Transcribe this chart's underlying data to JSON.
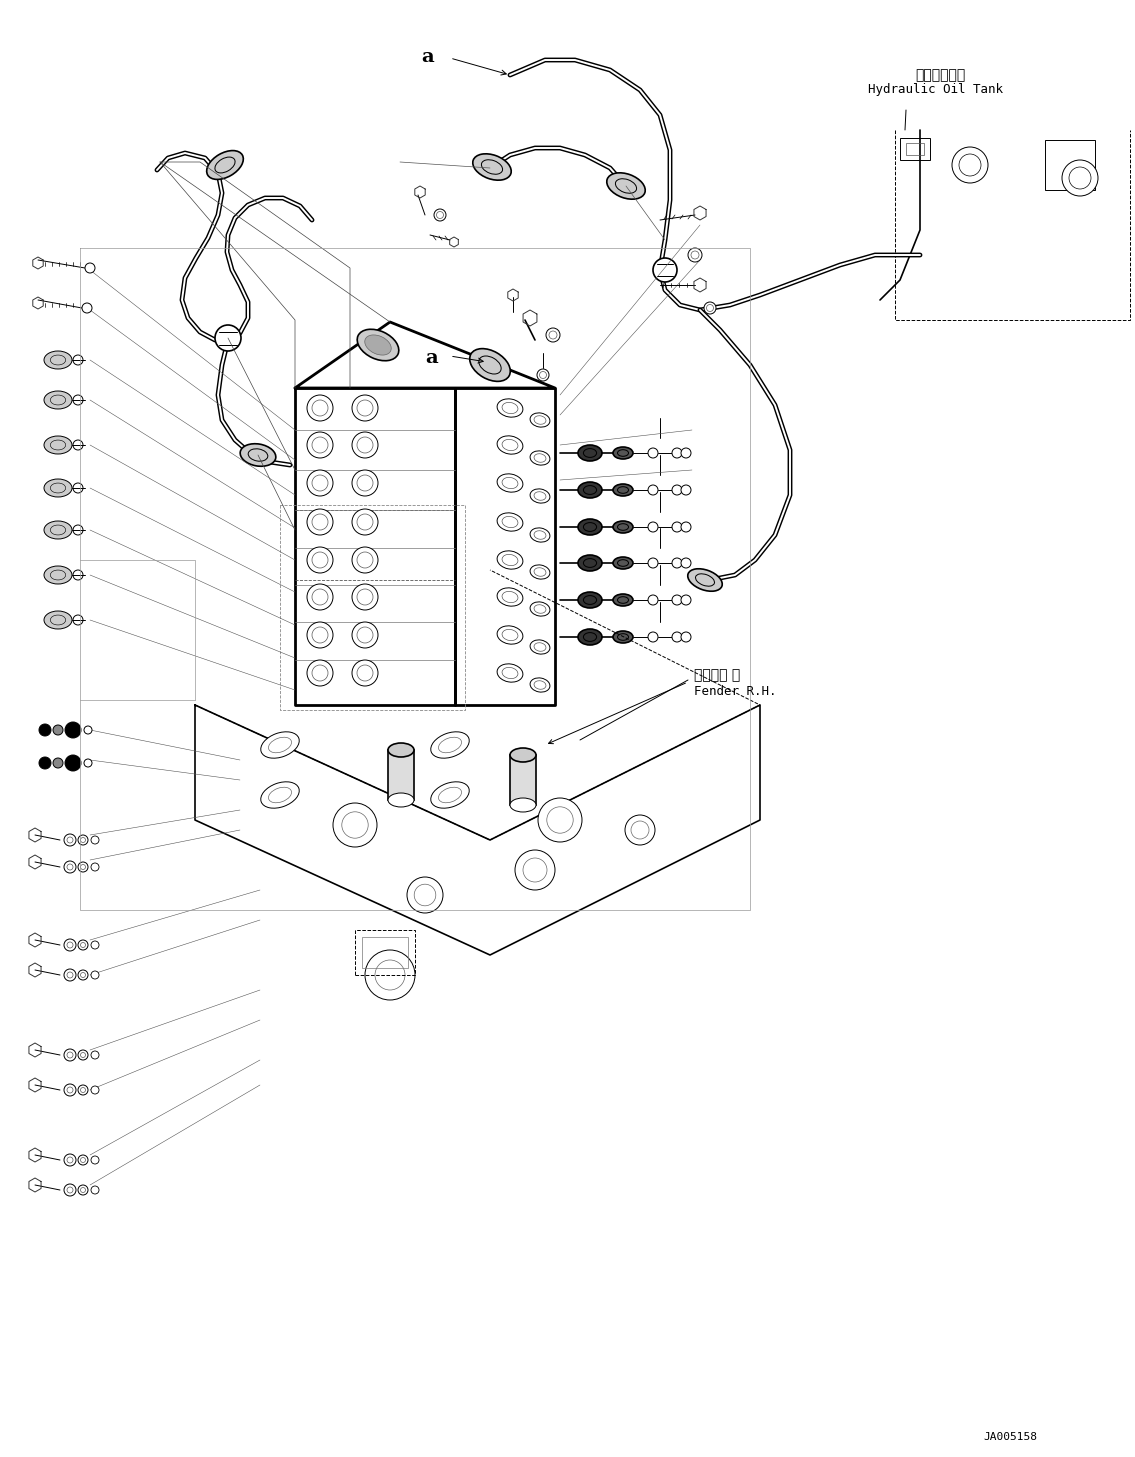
{
  "bg_color": "#ffffff",
  "line_color": "#000000",
  "fig_width": 11.35,
  "fig_height": 14.57,
  "dpi": 100,
  "label_hydraulic_jp": "作動油タンク",
  "label_hydraulic_en": "Hydraulic Oil Tank",
  "label_fender_jp": "フェンダ 右",
  "label_fender_en": "Fender R.H.",
  "label_a1": "a",
  "label_a2": "a",
  "label_code": "JA005158",
  "lw_thin": 0.7,
  "lw_med": 1.2,
  "lw_thick": 2.0,
  "lw_hose": 3.5
}
